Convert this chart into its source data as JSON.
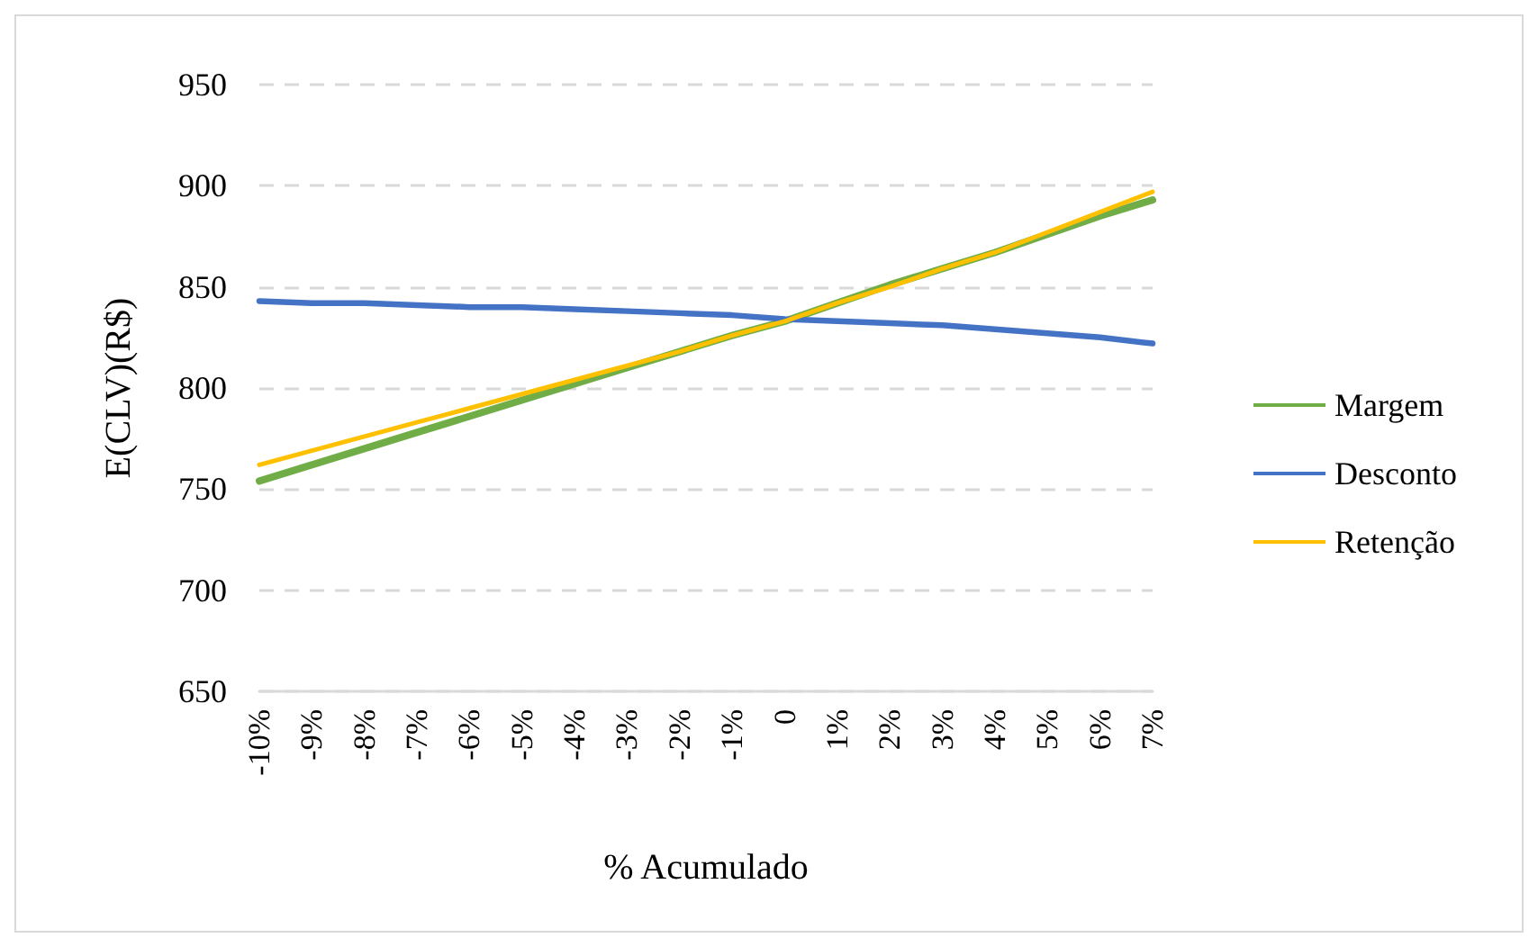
{
  "chart_data": {
    "type": "line",
    "xlabel": "% Acumulado",
    "ylabel": "E(CLV)(R$)",
    "categories": [
      "-10%",
      "-9%",
      "-8%",
      "-7%",
      "-6%",
      "-5%",
      "-4%",
      "-3%",
      "-2%",
      "-1%",
      "0",
      "1%",
      "2%",
      "3%",
      "4%",
      "5%",
      "6%",
      "7%"
    ],
    "series": [
      {
        "name": "Margem",
        "color": "#70ad47",
        "values": [
          754,
          762,
          770,
          778,
          786,
          794,
          802,
          810,
          818,
          826,
          833,
          842,
          851,
          859,
          867,
          876,
          885,
          893
        ]
      },
      {
        "name": "Desconto",
        "color": "#4472c4",
        "values": [
          843,
          842,
          842,
          841,
          840,
          840,
          839,
          838,
          837,
          836,
          834,
          833,
          832,
          831,
          829,
          827,
          825,
          822
        ]
      },
      {
        "name": "Retenção",
        "color": "#ffc000",
        "values": [
          762,
          769,
          776,
          783,
          790,
          797,
          804,
          811,
          818,
          826,
          833,
          842,
          850,
          859,
          867,
          877,
          887,
          897
        ]
      }
    ],
    "ylim": [
      650,
      950
    ],
    "yticks": [
      650,
      700,
      750,
      800,
      850,
      900,
      950
    ],
    "grid": "y",
    "legend": "right",
    "marker": "none",
    "line_style": "solid"
  }
}
